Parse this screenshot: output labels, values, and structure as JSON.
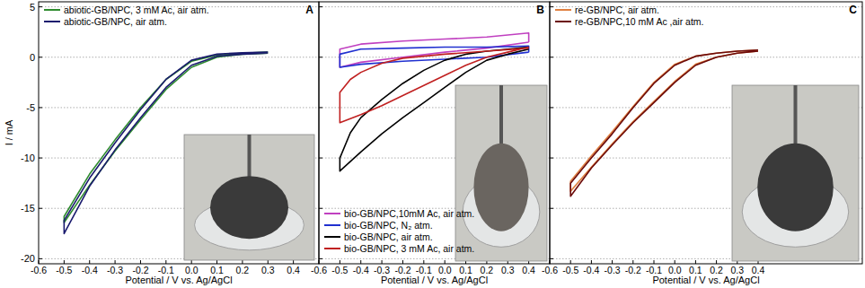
{
  "chart_data": [
    {
      "type": "line",
      "title": "A",
      "x_label": "Potential / V vs. Ag/AgCl",
      "y_label": "I / mA",
      "xlim": [
        -0.6,
        0.5
      ],
      "xticks": [
        -0.6,
        -0.5,
        -0.4,
        -0.3,
        -0.2,
        -0.1,
        {
          "value": 0,
          "label": "0.0"
        },
        0.1,
        0.2,
        0.3,
        0.4
      ],
      "ylim": [
        -20.5,
        5.5
      ],
      "yticks": [
        -20,
        -15,
        -10,
        -5,
        0,
        5
      ],
      "grid": true,
      "legend": "upper left",
      "series": [
        {
          "name": "abiotic-GB/NPC, 3 mM Ac, air atm.",
          "color": "#2e8b2e",
          "x": [
            0.3,
            0.2,
            0.1,
            0.0,
            -0.1,
            -0.2,
            -0.3,
            -0.4,
            -0.5,
            -0.5,
            -0.4,
            -0.3,
            -0.2,
            -0.1,
            0.0,
            0.1,
            0.2,
            0.3
          ],
          "values": [
            0.4,
            0.3,
            0.0,
            -1.0,
            -3.2,
            -6.2,
            -9.3,
            -12.7,
            -16.4,
            -15.8,
            -11.6,
            -8.2,
            -5.0,
            -2.2,
            -0.4,
            0.2,
            0.4,
            0.5
          ]
        },
        {
          "name": "abiotic-GB/NPC, air atm.",
          "color": "#1a1a6e",
          "x": [
            0.3,
            0.2,
            0.1,
            0.0,
            -0.1,
            -0.2,
            -0.3,
            -0.4,
            -0.5,
            -0.5,
            -0.4,
            -0.3,
            -0.2,
            -0.1,
            0.0,
            0.1,
            0.2,
            0.3
          ],
          "values": [
            0.4,
            0.3,
            0.1,
            -0.8,
            -3.0,
            -6.0,
            -9.2,
            -12.8,
            -17.5,
            -16.2,
            -12.0,
            -8.5,
            -5.2,
            -2.2,
            -0.3,
            0.3,
            0.45,
            0.5
          ]
        }
      ]
    },
    {
      "type": "line",
      "title": "B",
      "x_label": "Potential / V vs. Ag/AgCl",
      "xlim": [
        -0.6,
        0.5
      ],
      "xticks": [
        -0.6,
        -0.5,
        -0.4,
        -0.3,
        -0.2,
        -0.1,
        {
          "value": 0,
          "label": "0.0"
        },
        0.1,
        0.2,
        0.3,
        0.4
      ],
      "ylim": [
        -20.5,
        5.5
      ],
      "yticks": [
        -20,
        -15,
        -10,
        -5,
        0,
        5
      ],
      "grid": true,
      "legend": "lower left",
      "tick_labels": "x",
      "series": [
        {
          "name": "bio-GB/NPC,10mM Ac, air atm.",
          "color": "#c040c0",
          "x": [
            0.4,
            0.2,
            0.0,
            -0.2,
            -0.4,
            -0.5,
            -0.5,
            -0.4,
            -0.2,
            0.0,
            0.2,
            0.4,
            0.4
          ],
          "values": [
            1.5,
            0.9,
            0.5,
            0.0,
            -0.5,
            -1.0,
            0.8,
            1.3,
            1.6,
            1.8,
            2.0,
            2.4,
            1.5
          ]
        },
        {
          "name": "bio-GB/NPC, N₂ atm.",
          "color": "#2030d0",
          "x": [
            0.4,
            0.2,
            0.0,
            -0.2,
            -0.4,
            -0.5,
            -0.5,
            -0.4,
            -0.2,
            0.0,
            0.2,
            0.4,
            0.4
          ],
          "values": [
            0.5,
            0.0,
            -0.2,
            -0.4,
            -0.7,
            -1.0,
            0.3,
            0.8,
            0.9,
            1.0,
            1.0,
            1.1,
            0.5
          ]
        },
        {
          "name": "bio-GB/NPC, air atm.",
          "color": "#000000",
          "x": [
            0.4,
            0.3,
            0.2,
            0.1,
            0.0,
            -0.1,
            -0.2,
            -0.3,
            -0.4,
            -0.5,
            -0.5,
            -0.45,
            -0.4,
            -0.3,
            -0.2,
            -0.1,
            0.0,
            0.1,
            0.2,
            0.3,
            0.4
          ],
          "values": [
            0.8,
            0.3,
            -0.3,
            -1.5,
            -3.0,
            -4.5,
            -6.0,
            -7.6,
            -9.4,
            -11.3,
            -10.0,
            -7.5,
            -6.0,
            -4.2,
            -2.6,
            -1.3,
            -0.3,
            0.3,
            0.6,
            0.8,
            1.0
          ]
        },
        {
          "name": "bio-GB/NPC, 3 mM Ac, air atm.",
          "color": "#c02020",
          "x": [
            0.4,
            0.3,
            0.2,
            0.1,
            0.0,
            -0.1,
            -0.2,
            -0.3,
            -0.4,
            -0.5,
            -0.5,
            -0.45,
            -0.4,
            -0.3,
            -0.2,
            0.0,
            0.2,
            0.4
          ],
          "values": [
            1.0,
            0.5,
            0.0,
            -0.8,
            -1.8,
            -2.8,
            -3.8,
            -4.8,
            -5.7,
            -6.5,
            -3.5,
            -2.2,
            -1.5,
            -0.6,
            -0.1,
            0.3,
            0.6,
            0.9
          ]
        }
      ]
    },
    {
      "type": "line",
      "title": "C",
      "x_label": "Potential / V vs. Ag/AgCl",
      "xlim": [
        -0.6,
        0.9
      ],
      "xticks": [
        -0.6,
        -0.5,
        -0.4,
        -0.3,
        -0.2,
        -0.1,
        {
          "value": 0,
          "label": "0.0"
        },
        0.1,
        0.2,
        0.3,
        0.4
      ],
      "ylim": [
        -20.5,
        5.5
      ],
      "yticks": [
        -20,
        -15,
        -10,
        -5,
        0,
        5
      ],
      "grid": true,
      "legend": "upper left",
      "tick_labels": "x",
      "series": [
        {
          "name": "re-GB/NPC, air atm.",
          "color": "#e08040",
          "x": [
            0.4,
            0.3,
            0.2,
            0.1,
            0.0,
            -0.1,
            -0.2,
            -0.3,
            -0.4,
            -0.5,
            -0.5,
            -0.4,
            -0.3,
            -0.2,
            -0.1,
            0.0,
            0.1,
            0.2,
            0.3,
            0.4
          ],
          "values": [
            0.6,
            0.4,
            0.0,
            -0.7,
            -2.4,
            -4.4,
            -6.4,
            -8.6,
            -10.9,
            -13.3,
            -12.3,
            -9.8,
            -7.4,
            -4.9,
            -2.5,
            -0.7,
            0.1,
            0.4,
            0.6,
            0.7
          ]
        },
        {
          "name": "re-GB/NPC,10 mM Ac ,air atm.",
          "color": "#6b0a0a",
          "x": [
            0.4,
            0.3,
            0.2,
            0.1,
            0.0,
            -0.1,
            -0.2,
            -0.3,
            -0.4,
            -0.5,
            -0.5,
            -0.4,
            -0.3,
            -0.2,
            -0.1,
            0.0,
            0.1,
            0.2,
            0.3,
            0.4
          ],
          "values": [
            0.6,
            0.4,
            0.0,
            -0.8,
            -2.5,
            -4.5,
            -6.5,
            -8.7,
            -11.0,
            -13.8,
            -12.5,
            -10.0,
            -7.6,
            -5.0,
            -2.6,
            -0.8,
            0.1,
            0.4,
            0.6,
            0.7
          ]
        }
      ]
    }
  ]
}
